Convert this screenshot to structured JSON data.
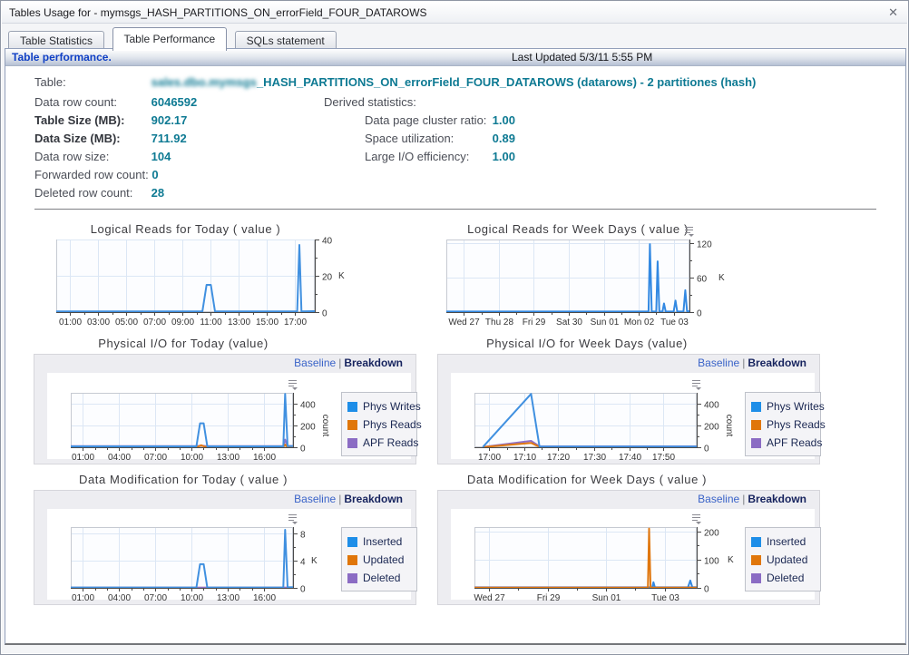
{
  "window": {
    "title": "Tables Usage for - mymsgs_HASH_PARTITIONS_ON_errorField_FOUR_DATAROWS",
    "close_glyph": "✕"
  },
  "tabs": [
    {
      "label": "Table Statistics"
    },
    {
      "label": "Table Performance"
    },
    {
      "label": "SQLs statement"
    }
  ],
  "header": {
    "title": "Table performance.",
    "last_updated": "Last Updated 5/3/11 5:55 PM"
  },
  "info": {
    "table_label": "Table:",
    "table_prefix": "sales.dbo.mymsgs",
    "table_value": "_HASH_PARTITIONS_ON_errorField_FOUR_DATAROWS (datarows) - 2 partitiones (hash)",
    "rows": [
      {
        "label": "Data row count:",
        "value": "6046592"
      },
      {
        "label": "Table Size (MB):",
        "value": "902.17"
      },
      {
        "label": "Data Size (MB):",
        "value": "711.92"
      },
      {
        "label": "Data row size:",
        "value": "104"
      },
      {
        "label": "Forwarded row count:",
        "value": "0"
      },
      {
        "label": "Deleted row count:",
        "value": "28"
      }
    ],
    "derived": {
      "title": "Derived statistics:",
      "rows": [
        {
          "label": "Data page cluster ratio:",
          "value": "1.00"
        },
        {
          "label": "Space utilization:",
          "value": "0.89"
        },
        {
          "label": "Large I/O efficiency:",
          "value": "1.00"
        }
      ]
    }
  },
  "links": {
    "baseline": "Baseline",
    "separator": "|",
    "breakdown": "Breakdown"
  },
  "colors": {
    "accent_blue": "#1e8ee8",
    "orange": "#e0760a",
    "purple": "#8b6cc4",
    "value_teal": "#0e7a93",
    "link_blue": "#3a63c8",
    "breakdown_navy": "#16235e"
  },
  "charts": [
    {
      "type": "line",
      "title": "Logical Reads for Today ( value )",
      "x_range": [
        0,
        18.4
      ],
      "y_max": 40000,
      "y_unit": "K",
      "unit_dx": 18,
      "unit_rotated": false,
      "minor_x": 1,
      "y_ticks": [
        {
          "v": 0,
          "label": "0"
        },
        {
          "v": 20000,
          "label": "20"
        },
        {
          "v": 40000,
          "label": "40"
        }
      ],
      "x_ticks": [
        {
          "t": 1,
          "label": "01:00"
        },
        {
          "t": 3,
          "label": "03:00"
        },
        {
          "t": 5,
          "label": "05:00"
        },
        {
          "t": 7,
          "label": "07:00"
        },
        {
          "t": 9,
          "label": "09:00"
        },
        {
          "t": 11,
          "label": "11:00"
        },
        {
          "t": 13,
          "label": "13:00"
        },
        {
          "t": 15,
          "label": "15:00"
        },
        {
          "t": 17,
          "label": "17:00"
        }
      ],
      "legend": [],
      "series": [
        {
          "name": "value",
          "color": "#4090e0",
          "points": [
            [
              0,
              350
            ],
            [
              10.4,
              350
            ],
            [
              10.7,
              15000
            ],
            [
              11.0,
              15000
            ],
            [
              11.3,
              350
            ],
            [
              16.8,
              350
            ],
            [
              17.15,
              350
            ],
            [
              17.3,
              37000
            ],
            [
              17.45,
              350
            ],
            [
              18.4,
              500
            ]
          ]
        }
      ]
    },
    {
      "type": "line",
      "title": "Logical Reads for Week Days ( value )",
      "x_range": [
        0,
        6.95
      ],
      "y_max": 126000,
      "y_unit": "K",
      "unit_dx": 24,
      "unit_rotated": false,
      "minor_x": 1,
      "y_ticks": [
        {
          "v": 0,
          "label": "0"
        },
        {
          "v": 60000,
          "label": "60"
        },
        {
          "v": 120000,
          "label": "120"
        }
      ],
      "x_ticks": [
        {
          "t": 0.5,
          "label": "Wed 27"
        },
        {
          "t": 1.5,
          "label": "Thu 28"
        },
        {
          "t": 2.5,
          "label": "Fri 29"
        },
        {
          "t": 3.5,
          "label": "Sat 30"
        },
        {
          "t": 4.5,
          "label": "Sun 01"
        },
        {
          "t": 5.5,
          "label": "Mon 02"
        },
        {
          "t": 6.5,
          "label": "Tue 03"
        }
      ],
      "legend": [],
      "series": [
        {
          "name": "value",
          "color": "#3389e2",
          "points": [
            [
              0,
              900
            ],
            [
              5.78,
              900
            ],
            [
              5.82,
              118000
            ],
            [
              5.87,
              1200
            ],
            [
              6.0,
              900
            ],
            [
              6.04,
              88000
            ],
            [
              6.09,
              1300
            ],
            [
              6.18,
              900
            ],
            [
              6.22,
              15000
            ],
            [
              6.27,
              900
            ],
            [
              6.5,
              900
            ],
            [
              6.55,
              20000
            ],
            [
              6.6,
              1000
            ],
            [
              6.78,
              1000
            ],
            [
              6.83,
              38000
            ],
            [
              6.88,
              1500
            ],
            [
              6.95,
              1200
            ]
          ]
        }
      ]
    },
    {
      "type": "line",
      "title": "Physical I/O for Today (value)",
      "x_range": [
        0,
        18.4
      ],
      "y_max": 500,
      "y_unit": "count",
      "unit_dx": 0,
      "unit_rotated": true,
      "minor_x": 2,
      "baseline_label": "Baseline",
      "breakdown_label": "Breakdown",
      "y_ticks": [
        {
          "v": 0,
          "label": "0"
        },
        {
          "v": 200,
          "label": "200"
        },
        {
          "v": 400,
          "label": "400"
        }
      ],
      "x_ticks": [
        {
          "t": 1,
          "label": "01:00"
        },
        {
          "t": 4,
          "label": "04:00"
        },
        {
          "t": 7,
          "label": "07:00"
        },
        {
          "t": 10,
          "label": "10:00"
        },
        {
          "t": 13,
          "label": "13:00"
        },
        {
          "t": 16,
          "label": "16:00"
        }
      ],
      "legend": [
        {
          "name": "Phys Writes",
          "color": "#1e8ee8"
        },
        {
          "name": "Phys Reads",
          "color": "#e0760a"
        },
        {
          "name": "APF Reads",
          "color": "#8b6cc4"
        }
      ],
      "series": [
        {
          "name": "APF Reads",
          "color": "#8f70c8",
          "points": [
            [
              0,
              10
            ],
            [
              10.4,
              10
            ],
            [
              10.8,
              14
            ],
            [
              11.2,
              10
            ],
            [
              17.6,
              10
            ],
            [
              17.75,
              70
            ],
            [
              17.95,
              12
            ],
            [
              18.4,
              12
            ]
          ]
        },
        {
          "name": "Phys Reads",
          "color": "#e0770f",
          "points": [
            [
              0,
              4
            ],
            [
              10.5,
              4
            ],
            [
              10.8,
              18
            ],
            [
              11.1,
              4
            ],
            [
              17.6,
              4
            ],
            [
              17.75,
              25
            ],
            [
              17.9,
              4
            ],
            [
              18.4,
              4
            ]
          ]
        },
        {
          "name": "Phys Writes",
          "color": "#4090e0",
          "points": [
            [
              0,
              8
            ],
            [
              10.4,
              8
            ],
            [
              10.7,
              220
            ],
            [
              11.0,
              220
            ],
            [
              11.3,
              8
            ],
            [
              17.6,
              8
            ],
            [
              17.75,
              490
            ],
            [
              17.95,
              10
            ],
            [
              18.4,
              10
            ]
          ]
        }
      ]
    },
    {
      "type": "line",
      "title": "Physical I/O for Week Days (value)",
      "x_range": [
        16.93,
        17.99
      ],
      "y_max": 500,
      "y_unit": "count",
      "unit_dx": 0,
      "unit_rotated": true,
      "minor_x": 1,
      "baseline_label": "Baseline",
      "breakdown_label": "Breakdown",
      "y_ticks": [
        {
          "v": 0,
          "label": "0"
        },
        {
          "v": 200,
          "label": "200"
        },
        {
          "v": 400,
          "label": "400"
        }
      ],
      "x_ticks": [
        {
          "t": 17.0,
          "label": "17:00"
        },
        {
          "t": 17.17,
          "label": "17:10"
        },
        {
          "t": 17.33,
          "label": "17:20"
        },
        {
          "t": 17.5,
          "label": "17:30"
        },
        {
          "t": 17.67,
          "label": "17:40"
        },
        {
          "t": 17.83,
          "label": "17:50"
        }
      ],
      "legend": [
        {
          "name": "Phys Writes",
          "color": "#1e8ee8"
        },
        {
          "name": "Phys Reads",
          "color": "#e0760a"
        },
        {
          "name": "APF Reads",
          "color": "#8b6cc4"
        }
      ],
      "series": [
        {
          "name": "APF Reads",
          "color": "#8f70c8",
          "points": [
            [
              16.97,
              2
            ],
            [
              17.2,
              58
            ],
            [
              17.24,
              8
            ],
            [
              17.99,
              8
            ]
          ]
        },
        {
          "name": "Phys Reads",
          "color": "#e0770f",
          "points": [
            [
              16.97,
              1
            ],
            [
              17.2,
              40
            ],
            [
              17.24,
              3
            ],
            [
              17.99,
              3
            ]
          ]
        },
        {
          "name": "Phys Writes",
          "color": "#4090e0",
          "points": [
            [
              16.97,
              2
            ],
            [
              17.2,
              490
            ],
            [
              17.24,
              6
            ],
            [
              17.99,
              6
            ]
          ]
        }
      ]
    },
    {
      "type": "line",
      "title": "Data Modification for Today ( value )",
      "x_range": [
        0,
        18.4
      ],
      "y_max": 9000,
      "y_unit": "K",
      "unit_dx": 12,
      "unit_rotated": false,
      "minor_x": 2,
      "baseline_label": "Baseline",
      "breakdown_label": "Breakdown",
      "y_ticks": [
        {
          "v": 0,
          "label": "0"
        },
        {
          "v": 4000,
          "label": "4"
        },
        {
          "v": 8000,
          "label": "8"
        }
      ],
      "x_ticks": [
        {
          "t": 1,
          "label": "01:00"
        },
        {
          "t": 4,
          "label": "04:00"
        },
        {
          "t": 7,
          "label": "07:00"
        },
        {
          "t": 10,
          "label": "10:00"
        },
        {
          "t": 13,
          "label": "13:00"
        },
        {
          "t": 16,
          "label": "16:00"
        }
      ],
      "legend": [
        {
          "name": "Inserted",
          "color": "#1e8ee8"
        },
        {
          "name": "Updated",
          "color": "#e0760a"
        },
        {
          "name": "Deleted",
          "color": "#8b6cc4"
        }
      ],
      "series": [
        {
          "name": "Updated",
          "color": "#e0770f",
          "points": [
            [
              0,
              15
            ],
            [
              18.4,
              15
            ]
          ]
        },
        {
          "name": "Deleted",
          "color": "#8f70c8",
          "points": [
            [
              0,
              35
            ],
            [
              18.4,
              35
            ]
          ]
        },
        {
          "name": "Inserted",
          "color": "#4090e0",
          "points": [
            [
              0,
              60
            ],
            [
              10.4,
              60
            ],
            [
              10.7,
              3500
            ],
            [
              11.0,
              3500
            ],
            [
              11.3,
              60
            ],
            [
              17.6,
              60
            ],
            [
              17.75,
              8600
            ],
            [
              17.95,
              80
            ],
            [
              18.4,
              100
            ]
          ]
        }
      ]
    },
    {
      "type": "line",
      "title": "Data Modification for Week Days ( value )",
      "x_range": [
        0,
        7.6
      ],
      "y_max": 215000,
      "y_unit": "K",
      "unit_dx": 26,
      "unit_rotated": false,
      "minor_x": 1,
      "baseline_label": "Baseline",
      "breakdown_label": "Breakdown",
      "y_ticks": [
        {
          "v": 0,
          "label": "0"
        },
        {
          "v": 100000,
          "label": "100"
        },
        {
          "v": 200000,
          "label": "200"
        }
      ],
      "x_ticks": [
        {
          "t": 0.5,
          "label": "Wed 27"
        },
        {
          "t": 2.5,
          "label": "Fri 29"
        },
        {
          "t": 4.5,
          "label": "Sun 01"
        },
        {
          "t": 6.5,
          "label": "Tue 03"
        }
      ],
      "legend": [
        {
          "name": "Inserted",
          "color": "#1e8ee8"
        },
        {
          "name": "Updated",
          "color": "#e0760a"
        },
        {
          "name": "Deleted",
          "color": "#8b6cc4"
        }
      ],
      "series": [
        {
          "name": "Deleted",
          "color": "#8f70c8",
          "points": [
            [
              0,
              2000
            ],
            [
              7.6,
              2000
            ]
          ]
        },
        {
          "name": "Inserted",
          "color": "#3389e2",
          "points": [
            [
              0,
              1200
            ],
            [
              6.08,
              1200
            ],
            [
              6.12,
              20000
            ],
            [
              6.17,
              1500
            ],
            [
              7.3,
              1500
            ],
            [
              7.38,
              26000
            ],
            [
              7.45,
              2000
            ],
            [
              7.6,
              1800
            ]
          ]
        },
        {
          "name": "Updated",
          "color": "#e0770f",
          "points": [
            [
              0,
              800
            ],
            [
              5.93,
              800
            ],
            [
              5.97,
              210000
            ],
            [
              6.02,
              1000
            ],
            [
              7.6,
              800
            ]
          ]
        }
      ]
    }
  ]
}
